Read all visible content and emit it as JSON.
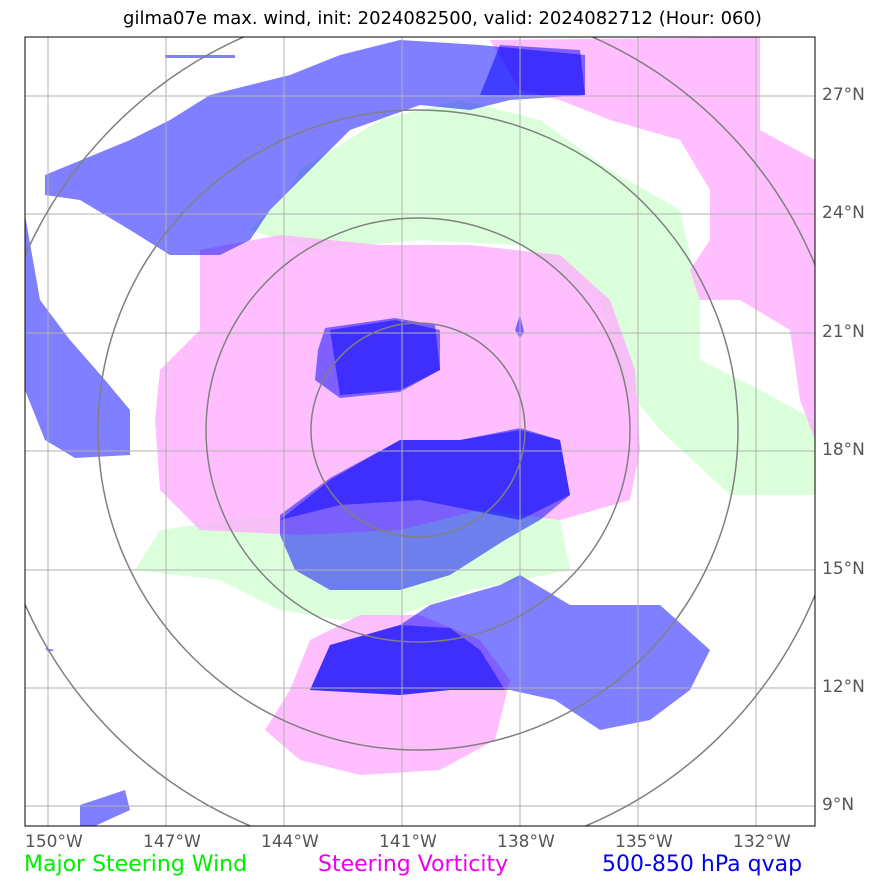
{
  "title": "gilma07e max. wind, init: 2024082500, valid: 2024082712 (Hour: 060)",
  "lon_labels": [
    "150°W",
    "147°W",
    "144°W",
    "141°W",
    "138°W",
    "135°W",
    "132°W"
  ],
  "lat_labels": [
    "27°N",
    "24°N",
    "21°N",
    "18°N",
    "15°N",
    "12°N",
    "9°N"
  ],
  "legend": {
    "wind": {
      "label": "Major Steering Wind",
      "color": "#00ee00"
    },
    "vorticity": {
      "label": "Steering Vorticity",
      "color": "#ee00ee"
    },
    "qvap": {
      "label": "500-850 hPa qvap",
      "color": "#0000ee"
    }
  },
  "layer_colors": {
    "wind_fill": "#ccffcc",
    "vorticity_fill": "#ffaaff",
    "qvap_fill": "#0000ff",
    "range_rings": "#808080",
    "gridlines": "#b0b0b0"
  }
}
